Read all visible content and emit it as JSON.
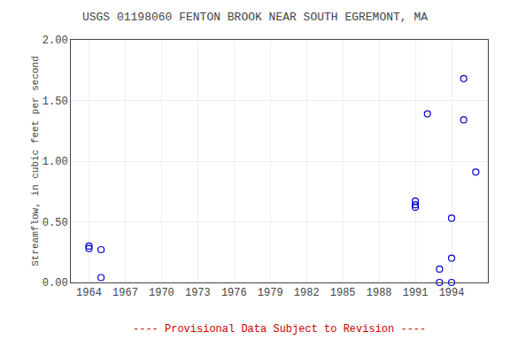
{
  "chart_data": {
    "type": "scatter",
    "title": "USGS 01198060 FENTON BROOK NEAR SOUTH EGREMONT, MA",
    "ylabel": "Streamflow, in cubic feet per second",
    "annotations": [
      {
        "text": "---- Provisional Data Subject to Revision ----",
        "color": "#cc0000"
      }
    ],
    "x": [
      1964,
      1964,
      1965,
      1965,
      1991,
      1991,
      1991,
      1992,
      1993,
      1993,
      1994,
      1994,
      1994,
      1995,
      1995,
      1996
    ],
    "values": [
      0.3,
      0.28,
      0.04,
      0.27,
      0.67,
      0.64,
      0.62,
      1.39,
      0.11,
      0.0,
      0.53,
      0.2,
      0.0,
      1.68,
      1.34,
      0.91
    ],
    "color": "#0000cc",
    "marker": "circle-open",
    "xlim": [
      1962.5,
      1997.0
    ],
    "ylim": [
      0.0,
      2.0
    ],
    "xticks": [
      1964,
      1967,
      1970,
      1973,
      1976,
      1979,
      1982,
      1985,
      1988,
      1991,
      1994
    ],
    "yticks": [
      {
        "value": 0.0,
        "label": "0.00"
      },
      {
        "value": 0.5,
        "label": "0.50"
      },
      {
        "value": 1.0,
        "label": "1.00"
      },
      {
        "value": 1.5,
        "label": "1.50"
      },
      {
        "value": 2.0,
        "label": "2.00"
      }
    ],
    "grid": true
  }
}
